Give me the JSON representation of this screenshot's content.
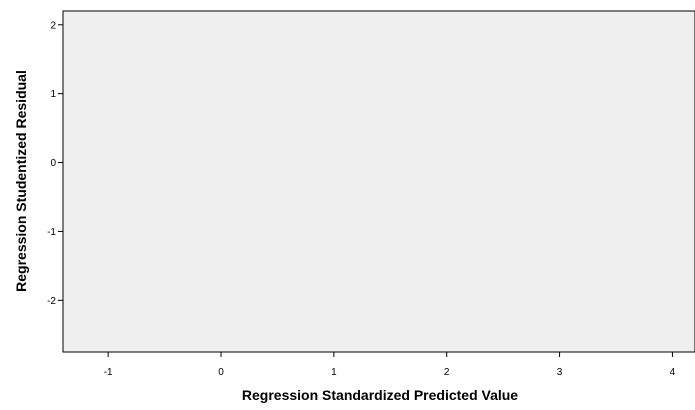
{
  "chart_data": {
    "type": "scatter",
    "title": "",
    "xlabel": "Regression Standardized Predicted Value",
    "ylabel": "Regression Studentized Residual",
    "xlim": [
      -1.4,
      4.2
    ],
    "ylim": [
      -2.75,
      2.2
    ],
    "xticks": [
      -1,
      0,
      1,
      2,
      3,
      4
    ],
    "yticks": [
      2,
      1,
      0,
      -1,
      -2
    ],
    "series": [
      {
        "x": [],
        "y": []
      }
    ],
    "grid": false,
    "legend": "none",
    "colors": {
      "plot_background": "#efefef",
      "frame": "#000000",
      "text": "#000000"
    }
  }
}
